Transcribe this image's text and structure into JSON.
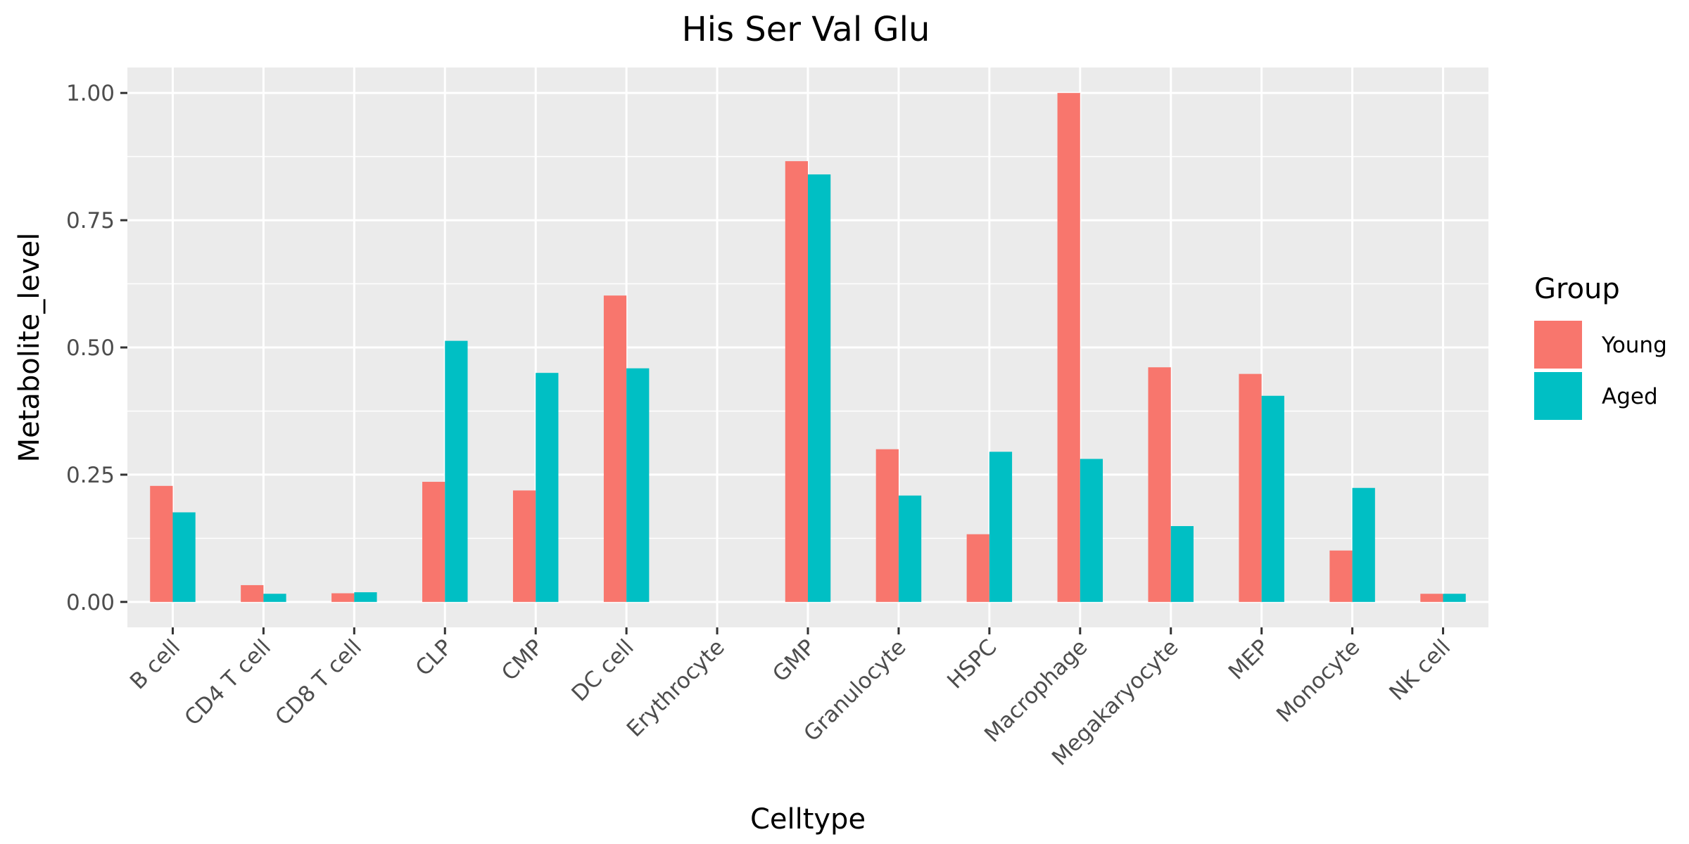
{
  "chart_data": {
    "type": "bar",
    "title": "His Ser Val Glu",
    "xlabel": "Celltype",
    "ylabel": "Metabolite_level",
    "categories": [
      "B cell",
      "CD4 T cell",
      "CD8 T cell",
      "CLP",
      "CMP",
      "DC cell",
      "Erythrocyte",
      "GMP",
      "Granulocyte",
      "HSPC",
      "Macrophage",
      "Megakaryocyte",
      "MEP",
      "Monocyte",
      "NK cell"
    ],
    "series": [
      {
        "name": "Young",
        "color": "#F8766D",
        "values": [
          0.228,
          0.033,
          0.017,
          0.236,
          0.219,
          0.602,
          0.0,
          0.866,
          0.3,
          0.133,
          1.0,
          0.461,
          0.448,
          0.101,
          0.016
        ]
      },
      {
        "name": "Aged",
        "color": "#00BFC4",
        "values": [
          0.176,
          0.016,
          0.019,
          0.513,
          0.45,
          0.459,
          0.0,
          0.84,
          0.209,
          0.295,
          0.281,
          0.149,
          0.405,
          0.224,
          0.016
        ]
      }
    ],
    "ylim": [
      -0.05,
      1.05
    ],
    "yticks": [
      0.0,
      0.25,
      0.5,
      0.75,
      1.0
    ],
    "ytick_labels": [
      "0.00",
      "0.25",
      "0.50",
      "0.75",
      "1.00"
    ],
    "legend": {
      "title": "Group",
      "position": "right"
    },
    "grid": true,
    "panel_background": "#EBEBEB"
  }
}
